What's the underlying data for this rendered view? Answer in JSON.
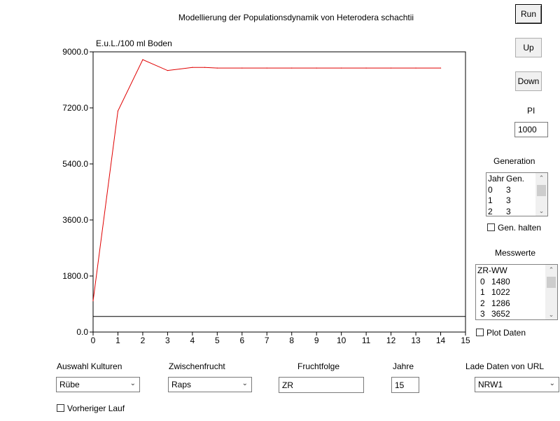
{
  "title": "Modellierung der Populationsdynamik von Heterodera schachtii",
  "buttons": {
    "run": "Run",
    "up": "Up",
    "down": "Down"
  },
  "pi": {
    "label": "PI",
    "value": "1000"
  },
  "generation": {
    "label": "Generation",
    "rows": [
      [
        "Jahr",
        "Gen."
      ],
      [
        "0",
        "3"
      ],
      [
        "1",
        "3"
      ],
      [
        "2",
        "3"
      ]
    ],
    "hold_label": "Gen. halten",
    "hold_checked": false
  },
  "messwerte": {
    "label": "Messwerte",
    "header": "ZR-WW",
    "rows": [
      [
        "0",
        "1480"
      ],
      [
        "1",
        "1022"
      ],
      [
        "2",
        "1286"
      ],
      [
        "3",
        "3652"
      ]
    ],
    "plot_label": "Plot Daten",
    "plot_checked": false
  },
  "bottom": {
    "kulturen_label": "Auswahl Kulturen",
    "kulturen_value": "Rübe",
    "zwischenfrucht_label": "Zwischenfrucht",
    "zwischenfrucht_value": "Raps",
    "fruchtfolge_label": "Fruchtfolge",
    "fruchtfolge_value": "ZR",
    "jahre_label": "Jahre",
    "jahre_value": "15",
    "url_label": "Lade Daten von URL",
    "url_value": "NRW1",
    "vorheriger_label": "Vorheriger Lauf",
    "vorheriger_checked": false
  },
  "colors": {
    "series": "#e00000",
    "axis": "#000000"
  },
  "chart_data": {
    "type": "line",
    "ylabel": "E.u.L./100 ml Boden",
    "xlabel": "",
    "xlim": [
      0,
      15
    ],
    "ylim": [
      0,
      9000
    ],
    "x_ticks": [
      "0",
      "1",
      "2",
      "3",
      "4",
      "5",
      "6",
      "7",
      "8",
      "9",
      "10",
      "11",
      "12",
      "13",
      "14",
      "15"
    ],
    "y_ticks": [
      "0.0",
      "1800.0",
      "3600.0",
      "5400.0",
      "7200.0",
      "9000.0"
    ],
    "y_tick_values": [
      0,
      1800,
      3600,
      5400,
      7200,
      9000
    ],
    "threshold": 500,
    "series": [
      {
        "x": [
          0,
          1,
          2,
          3,
          4,
          4.5,
          5,
          6,
          7,
          8,
          9,
          10,
          11,
          12,
          13,
          14
        ],
        "values": [
          1000,
          7100,
          8750,
          8400,
          8500,
          8500,
          8480,
          8480,
          8480,
          8480,
          8480,
          8480,
          8480,
          8480,
          8480,
          8480
        ]
      }
    ]
  }
}
